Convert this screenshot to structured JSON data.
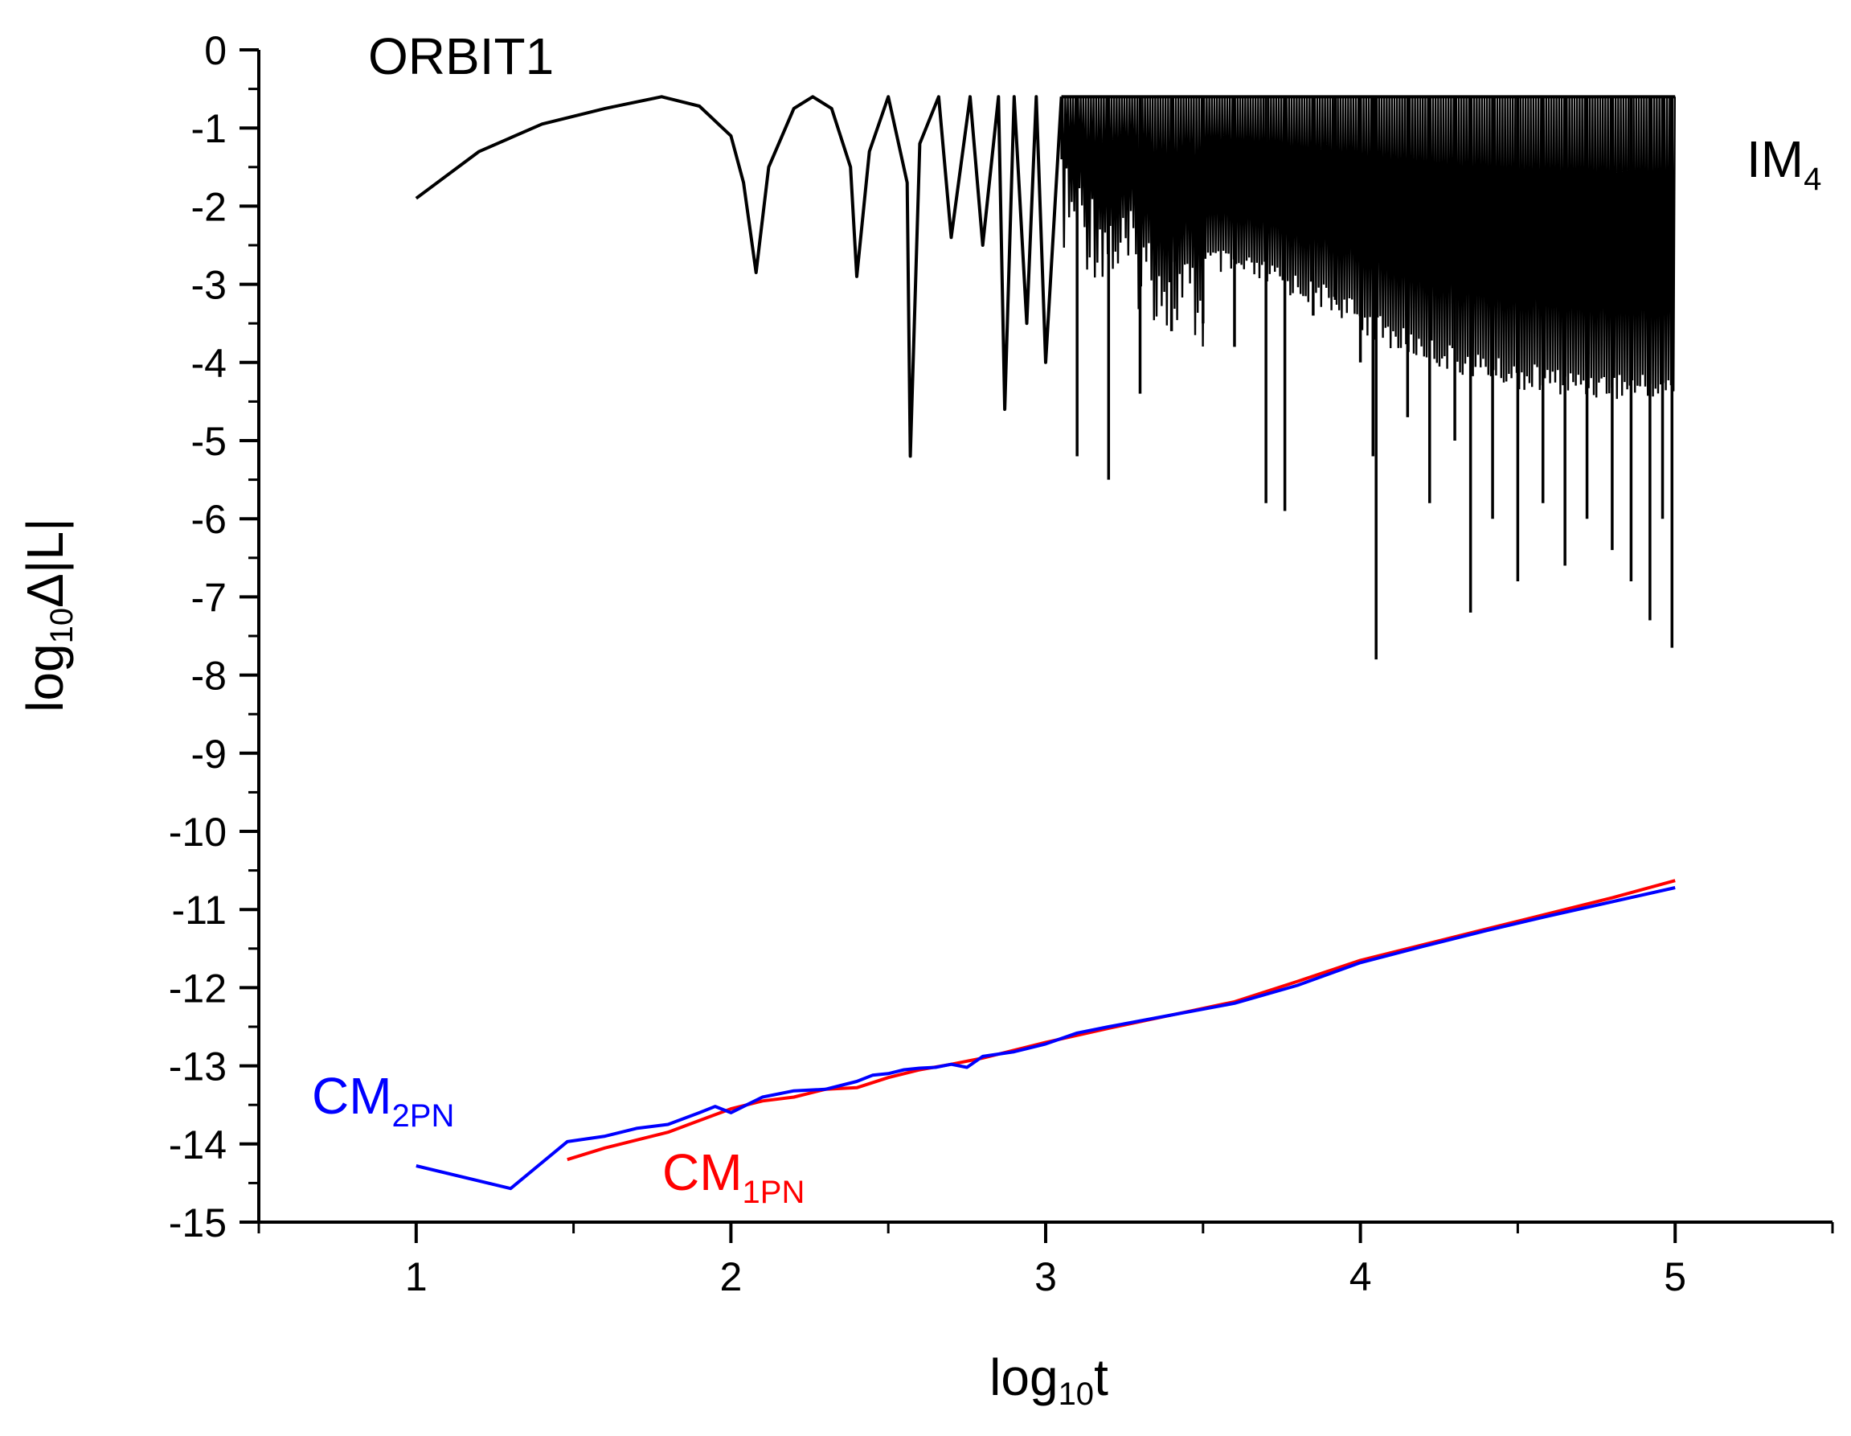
{
  "chart_data": {
    "type": "line",
    "title": "ORBIT1",
    "xlabel": {
      "main": "log",
      "sub": "10",
      "suffix": "t"
    },
    "ylabel": {
      "main": "log",
      "sub": "10",
      "suffix": "Δ|L|"
    },
    "xlim": [
      0.5,
      5.5
    ],
    "ylim": [
      -15,
      0
    ],
    "x_ticks": [
      1,
      2,
      3,
      4,
      5
    ],
    "x_tick_labels": [
      "1",
      "2",
      "3",
      "4",
      "5"
    ],
    "y_ticks": [
      0,
      -1,
      -2,
      -3,
      -4,
      -5,
      -6,
      -7,
      -8,
      -9,
      -10,
      -11,
      -12,
      -13,
      -14,
      -15
    ],
    "y_tick_labels": [
      "0",
      "-1",
      "-2",
      "-3",
      "-4",
      "-5",
      "-6",
      "-7",
      "-8",
      "-9",
      "-10",
      "-11",
      "-12",
      "-13",
      "-14",
      "-15"
    ],
    "series": [
      {
        "name": "IM4",
        "label_main": "IM",
        "label_sub": "4",
        "color": "#000000",
        "envelope_upper": -0.6,
        "x": [
          1.0,
          1.2,
          1.4,
          1.6,
          1.78,
          1.9,
          2.0,
          2.04,
          2.08,
          2.12,
          2.2,
          2.26,
          2.32,
          2.38,
          2.4,
          2.44,
          2.5,
          2.56,
          2.57,
          2.6,
          2.66,
          2.7,
          2.76,
          2.8,
          2.85,
          2.87,
          2.9,
          2.94,
          2.97,
          3.0,
          3.05
        ],
        "y": [
          -1.9,
          -1.3,
          -0.95,
          -0.75,
          -0.6,
          -0.72,
          -1.1,
          -1.7,
          -2.85,
          -1.5,
          -0.75,
          -0.6,
          -0.75,
          -1.5,
          -2.9,
          -1.3,
          -0.6,
          -1.7,
          -5.2,
          -1.2,
          -0.6,
          -2.4,
          -0.6,
          -2.5,
          -0.6,
          -4.6,
          -0.6,
          -3.5,
          -0.6,
          -4.0,
          -0.6
        ],
        "dip_minima": [
          {
            "x": 3.1,
            "y": -5.2
          },
          {
            "x": 3.2,
            "y": -5.5
          },
          {
            "x": 3.3,
            "y": -4.4
          },
          {
            "x": 3.4,
            "y": -3.6
          },
          {
            "x": 3.5,
            "y": -3.5
          },
          {
            "x": 3.6,
            "y": -3.8
          },
          {
            "x": 3.7,
            "y": -5.8
          },
          {
            "x": 3.76,
            "y": -5.9
          },
          {
            "x": 3.85,
            "y": -3.4
          },
          {
            "x": 3.92,
            "y": -3.2
          },
          {
            "x": 4.0,
            "y": -4.0
          },
          {
            "x": 4.04,
            "y": -5.2
          },
          {
            "x": 4.05,
            "y": -7.8
          },
          {
            "x": 4.15,
            "y": -4.7
          },
          {
            "x": 4.22,
            "y": -5.8
          },
          {
            "x": 4.3,
            "y": -5.0
          },
          {
            "x": 4.35,
            "y": -7.2
          },
          {
            "x": 4.42,
            "y": -6.0
          },
          {
            "x": 4.5,
            "y": -6.8
          },
          {
            "x": 4.58,
            "y": -5.8
          },
          {
            "x": 4.65,
            "y": -6.6
          },
          {
            "x": 4.72,
            "y": -6.0
          },
          {
            "x": 4.8,
            "y": -6.4
          },
          {
            "x": 4.86,
            "y": -6.8
          },
          {
            "x": 4.92,
            "y": -7.3
          },
          {
            "x": 4.96,
            "y": -6.0
          },
          {
            "x": 4.99,
            "y": -7.65
          }
        ],
        "floor_band": [
          {
            "x": 3.5,
            "y": -2.5
          },
          {
            "x": 3.7,
            "y": -2.7
          },
          {
            "x": 3.9,
            "y": -3.0
          },
          {
            "x": 4.1,
            "y": -3.5
          },
          {
            "x": 4.3,
            "y": -3.8
          },
          {
            "x": 4.5,
            "y": -4.0
          },
          {
            "x": 4.7,
            "y": -4.1
          },
          {
            "x": 5.0,
            "y": -4.15
          }
        ]
      },
      {
        "name": "CM1PN",
        "label_main": "CM",
        "label_sub": "1PN",
        "color": "#ff0000",
        "x": [
          1.48,
          1.6,
          1.7,
          1.8,
          1.9,
          2.0,
          2.1,
          2.2,
          2.3,
          2.4,
          2.5,
          2.6,
          2.7,
          2.8,
          2.9,
          3.0,
          3.2,
          3.4,
          3.6,
          3.8,
          4.0,
          4.2,
          4.4,
          4.6,
          4.8,
          5.0
        ],
        "y": [
          -14.2,
          -14.05,
          -13.95,
          -13.85,
          -13.7,
          -13.55,
          -13.45,
          -13.4,
          -13.3,
          -13.28,
          -13.15,
          -13.05,
          -12.98,
          -12.9,
          -12.8,
          -12.7,
          -12.52,
          -12.35,
          -12.18,
          -11.92,
          -11.65,
          -11.45,
          -11.25,
          -11.05,
          -10.85,
          -10.63
        ]
      },
      {
        "name": "CM2PN",
        "label_main": "CM",
        "label_sub": "2PN",
        "color": "#0000ff",
        "x": [
          1.0,
          1.3,
          1.48,
          1.6,
          1.7,
          1.8,
          1.9,
          1.95,
          2.0,
          2.05,
          2.1,
          2.2,
          2.3,
          2.4,
          2.45,
          2.5,
          2.55,
          2.6,
          2.65,
          2.7,
          2.75,
          2.8,
          2.85,
          2.9,
          3.0,
          3.1,
          3.2,
          3.4,
          3.6,
          3.8,
          4.0,
          4.2,
          4.4,
          4.6,
          4.8,
          5.0
        ],
        "y": [
          -14.28,
          -14.57,
          -13.97,
          -13.9,
          -13.8,
          -13.75,
          -13.6,
          -13.52,
          -13.6,
          -13.5,
          -13.4,
          -13.32,
          -13.3,
          -13.2,
          -13.12,
          -13.1,
          -13.05,
          -13.03,
          -13.02,
          -12.98,
          -13.02,
          -12.88,
          -12.85,
          -12.82,
          -12.72,
          -12.58,
          -12.5,
          -12.35,
          -12.2,
          -11.97,
          -11.68,
          -11.47,
          -11.27,
          -11.08,
          -10.9,
          -10.72
        ]
      }
    ]
  }
}
